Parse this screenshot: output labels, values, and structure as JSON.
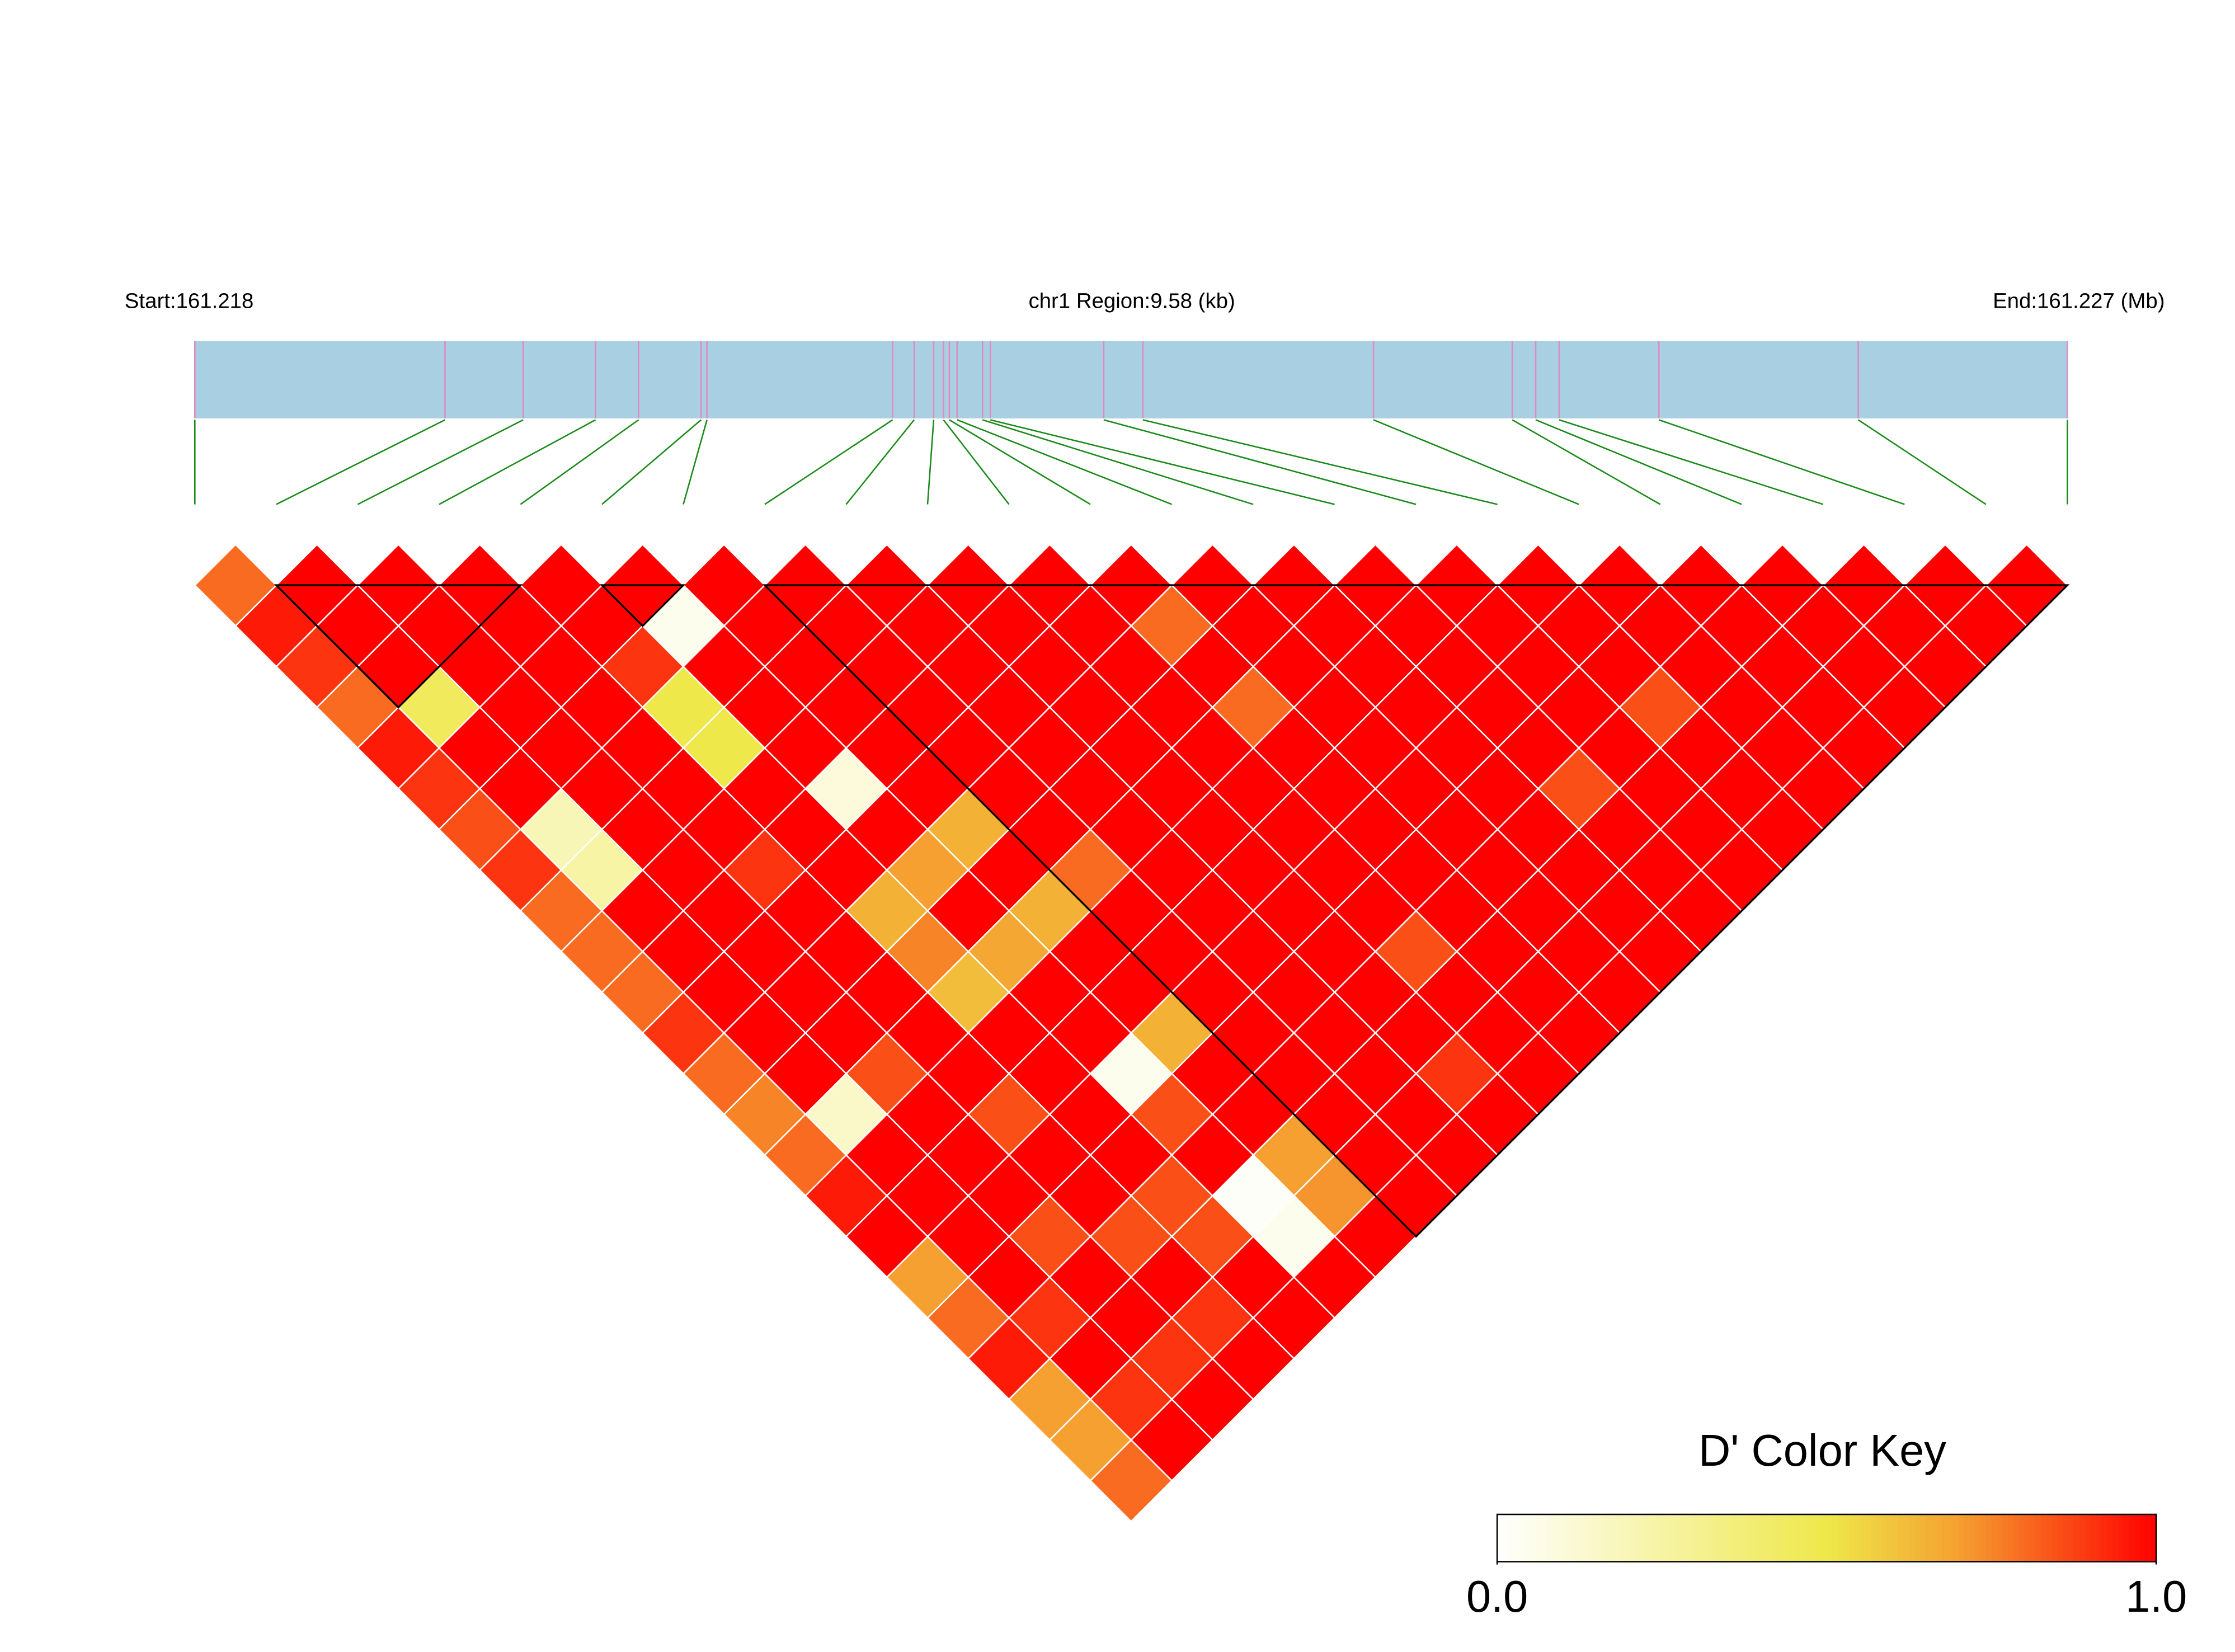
{
  "chart_data": {
    "type": "ld_heatmap",
    "start_label": "Start:161.218",
    "region_label": "chr1 Region:9.58 (kb)",
    "end_label": "End:161.227 (Mb)",
    "xlim": [
      0,
      9.58
    ],
    "snp_positions_kb": [
      0,
      1.28,
      1.68,
      2.05,
      2.27,
      2.59,
      2.62,
      3.57,
      3.68,
      3.78,
      3.83,
      3.86,
      3.9,
      4.03,
      4.07,
      4.65,
      4.85,
      6.03,
      6.74,
      6.86,
      6.98,
      7.49,
      8.51,
      9.58
    ],
    "ld_values": [
      [
        0.8,
        1,
        1,
        1,
        1,
        1,
        1,
        1,
        1,
        1,
        1,
        1,
        1,
        1,
        1,
        1,
        1,
        1,
        1,
        1,
        1,
        1,
        1
      ],
      [
        0.95,
        1,
        1,
        1,
        1,
        0.05,
        1,
        1,
        1,
        1,
        1,
        0.8,
        1,
        1,
        1,
        1,
        1,
        1,
        1,
        1,
        1,
        1
      ],
      [
        0.9,
        1,
        1,
        1,
        0.9,
        1,
        1,
        1,
        1,
        1,
        1,
        1,
        1,
        1,
        1,
        1,
        1,
        1,
        1,
        1,
        1
      ],
      [
        0.8,
        0.45,
        1,
        1,
        0.5,
        1,
        1,
        1,
        1,
        1,
        1,
        0.8,
        1,
        1,
        1,
        1,
        0.85,
        1,
        1,
        1
      ],
      [
        0.95,
        1,
        1,
        1,
        0.5,
        1,
        1,
        1,
        1,
        1,
        1,
        1,
        1,
        1,
        1,
        1,
        1,
        1,
        1
      ],
      [
        0.9,
        1,
        1,
        1,
        1,
        0.1,
        1,
        1,
        1,
        1,
        1,
        1,
        1,
        1,
        0.85,
        1,
        1,
        1
      ],
      [
        0.85,
        0.2,
        1,
        1,
        1,
        1,
        0.65,
        1,
        1,
        1,
        1,
        1,
        1,
        1,
        1,
        1,
        1
      ],
      [
        0.9,
        0.25,
        1,
        0.9,
        1,
        0.7,
        1,
        0.8,
        1,
        1,
        1,
        1,
        1,
        1,
        1,
        1
      ],
      [
        0.8,
        1,
        1,
        1,
        0.65,
        1,
        0.65,
        1,
        1,
        1,
        1,
        1,
        1,
        1,
        1
      ],
      [
        0.8,
        1,
        1,
        1,
        0.75,
        0.68,
        1,
        1,
        1,
        1,
        0.85,
        1,
        1,
        1
      ],
      [
        0.8,
        1,
        1,
        1,
        0.62,
        1,
        1,
        1,
        1,
        1,
        1,
        1,
        1
      ],
      [
        0.9,
        1,
        1,
        1,
        1,
        1,
        0.65,
        1,
        1,
        1,
        1,
        1
      ],
      [
        0.8,
        1,
        0.85,
        1,
        1,
        0.05,
        1,
        1,
        1,
        0.9,
        1
      ],
      [
        0.75,
        0.15,
        1,
        0.85,
        1,
        0.85,
        1,
        1,
        1,
        1
      ],
      [
        0.8,
        1,
        1,
        1,
        1,
        1,
        0.7,
        1,
        1
      ],
      [
        0.95,
        1,
        1,
        1,
        0.85,
        0.02,
        0.72,
        1
      ],
      [
        1,
        1,
        0.85,
        0.85,
        0.85,
        0.05,
        1
      ],
      [
        0.7,
        1,
        1,
        1,
        1,
        1
      ],
      [
        0.8,
        0.9,
        1,
        0.9,
        1
      ],
      [
        0.95,
        1,
        0.9,
        1
      ],
      [
        0.7,
        0.9,
        1
      ],
      [
        0.7,
        1
      ],
      [
        0.8
      ]
    ],
    "ld_blocks": [
      [
        1,
        4
      ],
      [
        5,
        6
      ],
      [
        7,
        23
      ]
    ],
    "colorbar_title": "D' Color Key",
    "colorbar_lim": [
      0,
      1
    ],
    "colorbar_ticks": [
      {
        "value": 0,
        "label": "0.0"
      },
      {
        "value": 1,
        "label": "1.0"
      }
    ],
    "color_stops": [
      [
        0,
        "#ffffff"
      ],
      [
        0.5,
        "#eee84a"
      ],
      [
        0.7,
        "#f5a030"
      ],
      [
        1,
        "#ff0000"
      ]
    ],
    "gene_bar_color": "#a9cfe2",
    "snp_tick_color": "#e08ac0",
    "connector_color": "#1a8a1a"
  }
}
